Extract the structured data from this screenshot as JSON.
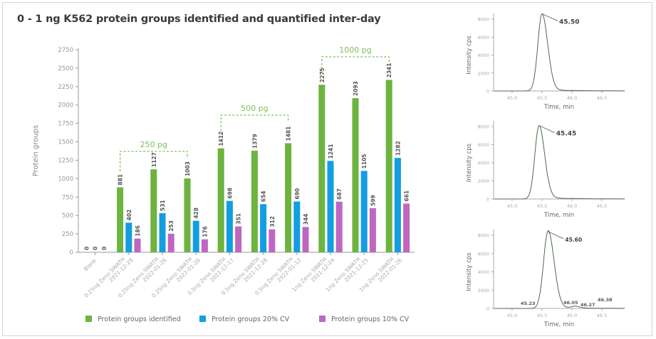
{
  "title": "0 - 1 ng K562 protein groups identified and quantified inter-day",
  "colors": {
    "identified": "#6db33f",
    "cv20": "#129ee0",
    "cv10": "#bf66c2",
    "bracket": "#7cc05a",
    "trace": "#4a6b4a"
  },
  "chart_data": [
    {
      "type": "bar",
      "ylabel": "Protein groups",
      "ylim": [
        0,
        2750
      ],
      "yticks": [
        "0",
        "250",
        "500",
        "750",
        "1000",
        "1250",
        "1500",
        "1750",
        "2000",
        "2250",
        "2500",
        "2750"
      ],
      "grid": false,
      "legend_position": "bottom",
      "categories": [
        "Blank",
        "0.25ng Zeno SWATH 2021-12-29",
        "0.25ng Zeno SWATH 2022-01-26",
        "0.25ng Zeno SWATH 2022-01-26",
        "0.5ng Zeno SWATH 2021-12-17",
        "0.5ng Zeno SWATH 2021-12-28",
        "0.5ng Zeno SWATH 2022-01-12",
        "1ng Zeno SWATH 2021-12-24",
        "1ng Zeno SWATH 2021-12-25",
        "1ng Zeno SWATH 2022-01-26"
      ],
      "series": [
        {
          "name": "Protein groups identified",
          "values": [
            0,
            881,
            1127,
            1003,
            1412,
            1379,
            1481,
            2275,
            2093,
            2341
          ]
        },
        {
          "name": "Protein groups 20% CV",
          "values": [
            0,
            402,
            531,
            428,
            698,
            654,
            690,
            1241,
            1105,
            1282
          ]
        },
        {
          "name": "Protein groups 10% CV",
          "values": [
            0,
            186,
            253,
            176,
            351,
            312,
            344,
            687,
            599,
            661
          ]
        }
      ],
      "annotations": [
        {
          "label": "250 pg",
          "from": 1,
          "to": 3
        },
        {
          "label": "500 pg",
          "from": 4,
          "to": 6
        },
        {
          "label": "1000 pg",
          "from": 7,
          "to": 9
        }
      ]
    },
    {
      "type": "line",
      "xlabel": "Time, min",
      "ylabel": "Intensity cps",
      "xlim": [
        44.7,
        46.9
      ],
      "ylim": [
        0,
        8500
      ],
      "xticks": [
        "45.0",
        "45.5",
        "46.0",
        "46.5"
      ],
      "yticks": [
        "0",
        "2000",
        "4000",
        "6000",
        "8000"
      ],
      "peaks": [
        {
          "rt": 45.5,
          "height": 8600,
          "width": 0.07
        }
      ],
      "labels": [
        {
          "text": "45.50",
          "x": 45.5
        }
      ]
    },
    {
      "type": "line",
      "xlabel": "Time, min",
      "ylabel": "Intensity cps",
      "xlim": [
        44.7,
        46.9
      ],
      "ylim": [
        0,
        8500
      ],
      "xticks": [
        "45.0",
        "45.5",
        "46.0",
        "46.5"
      ],
      "yticks": [
        "0",
        "2000",
        "4000",
        "6000",
        "8000"
      ],
      "peaks": [
        {
          "rt": 45.45,
          "height": 8100,
          "width": 0.07
        }
      ],
      "labels": [
        {
          "text": "45.45",
          "x": 45.45
        }
      ]
    },
    {
      "type": "line",
      "xlabel": "Time, min",
      "ylabel": "Intensity cps",
      "xlim": [
        44.7,
        46.9
      ],
      "ylim": [
        0,
        8500
      ],
      "xticks": [
        "45.0",
        "45.5",
        "46.0",
        "46.5"
      ],
      "yticks": [
        "0",
        "2000",
        "4000",
        "6000",
        "8000"
      ],
      "peaks": [
        {
          "rt": 45.6,
          "height": 8400,
          "width": 0.075
        },
        {
          "rt": 46.05,
          "height": 200,
          "width": 0.06
        }
      ],
      "labels": [
        {
          "text": "45.60",
          "x": 45.6
        },
        {
          "text": "45.23",
          "x": 45.23
        },
        {
          "text": "46.05",
          "x": 46.05
        },
        {
          "text": "46.27",
          "x": 46.27
        },
        {
          "text": "46.38",
          "x": 46.38
        }
      ]
    }
  ]
}
